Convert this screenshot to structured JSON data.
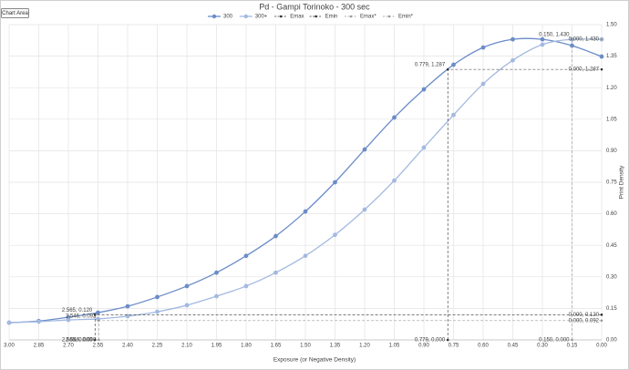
{
  "tooltip": "Chart Area",
  "chart_data": {
    "type": "line",
    "title": "Pd - Gampi Torinoko - 300 sec",
    "x_label": "Exposure (or Negative Density)",
    "y_label": "Print Density",
    "xlim": [
      3.0,
      0.0
    ],
    "ylim": [
      0.0,
      1.5
    ],
    "xticks": [
      {
        "value": 3.0,
        "label": "3.00"
      },
      {
        "value": 2.85,
        "label": "2.85"
      },
      {
        "value": 2.7,
        "label": "2.70"
      },
      {
        "value": 2.55,
        "label": "2.55"
      },
      {
        "value": 2.4,
        "label": "2.40"
      },
      {
        "value": 2.25,
        "label": "2.25"
      },
      {
        "value": 2.1,
        "label": "2.10"
      },
      {
        "value": 1.95,
        "label": "1.95"
      },
      {
        "value": 1.8,
        "label": "1.80"
      },
      {
        "value": 1.65,
        "label": "1.65"
      },
      {
        "value": 1.5,
        "label": "1.50"
      },
      {
        "value": 1.35,
        "label": "1.35"
      },
      {
        "value": 1.2,
        "label": "1.20"
      },
      {
        "value": 1.05,
        "label": "1.05"
      },
      {
        "value": 0.9,
        "label": "0.90"
      },
      {
        "value": 0.75,
        "label": "0.75"
      },
      {
        "value": 0.6,
        "label": "0.60"
      },
      {
        "value": 0.45,
        "label": "0.45"
      },
      {
        "value": 0.3,
        "label": "0.30"
      },
      {
        "value": 0.15,
        "label": "0.15"
      },
      {
        "value": 0.0,
        "label": "0.00"
      }
    ],
    "yticks": [
      {
        "value": 0.0,
        "label": "0.00"
      },
      {
        "value": 0.15,
        "label": "0.15"
      },
      {
        "value": 0.3,
        "label": "0.30"
      },
      {
        "value": 0.45,
        "label": "0.45"
      },
      {
        "value": 0.6,
        "label": "0.60"
      },
      {
        "value": 0.75,
        "label": "0.75"
      },
      {
        "value": 0.9,
        "label": "0.90"
      },
      {
        "value": 1.05,
        "label": "1.05"
      },
      {
        "value": 1.2,
        "label": "1.20"
      },
      {
        "value": 1.35,
        "label": "1.35"
      },
      {
        "value": 1.5,
        "label": "1.50"
      }
    ],
    "grid": true,
    "legend": "top",
    "series": [
      {
        "name": "300",
        "color": "#6b8cc8",
        "dashed": false,
        "smooth": true,
        "x": [
          3.0,
          2.85,
          2.7,
          2.55,
          2.4,
          2.25,
          2.1,
          1.95,
          1.8,
          1.65,
          1.5,
          1.35,
          1.2,
          1.05,
          0.9,
          0.75,
          0.6,
          0.45,
          0.3,
          0.15,
          0.0
        ],
        "values": [
          0.082,
          0.09,
          0.108,
          0.13,
          0.16,
          0.204,
          0.256,
          0.32,
          0.4,
          0.494,
          0.611,
          0.75,
          0.906,
          1.058,
          1.192,
          1.309,
          1.391,
          1.43,
          1.43,
          1.4,
          1.348
        ]
      },
      {
        "name": "300+",
        "color": "#a3b9e0",
        "dashed": false,
        "smooth": true,
        "x": [
          3.0,
          2.85,
          2.7,
          2.55,
          2.4,
          2.25,
          2.1,
          1.95,
          1.8,
          1.65,
          1.5,
          1.35,
          1.2,
          1.05,
          0.9,
          0.75,
          0.6,
          0.45,
          0.3,
          0.15,
          0.0
        ],
        "values": [
          0.082,
          0.087,
          0.095,
          0.1,
          0.113,
          0.134,
          0.165,
          0.208,
          0.256,
          0.32,
          0.4,
          0.5,
          0.62,
          0.758,
          0.915,
          1.07,
          1.218,
          1.33,
          1.405,
          1.43,
          1.43
        ]
      },
      {
        "name": "Emax",
        "color": "#303030",
        "dashed": true,
        "smooth": false,
        "x": [
          0.779,
          0.779,
          0.0
        ],
        "values": [
          0.0,
          1.287,
          1.287
        ],
        "value_labels": [
          "0.779, 0.000",
          "0.779, 1.287",
          "0.000, 1.287"
        ]
      },
      {
        "name": "Emin",
        "color": "#303030",
        "dashed": true,
        "smooth": false,
        "x": [
          2.565,
          2.565,
          0.0
        ],
        "values": [
          0.0,
          0.12,
          0.12
        ],
        "value_labels": [
          "2.565, 0.000",
          "2.565, 0.120",
          "0.000, 0.120"
        ]
      },
      {
        "name": "Emax*",
        "color": "#9a9a9a",
        "dashed": true,
        "smooth": false,
        "x": [
          0.15,
          0.15,
          0.0
        ],
        "values": [
          0.0,
          1.43,
          1.43
        ],
        "value_labels": [
          "0.150, 0.000",
          "0.150, 1.430",
          "0.000, 1.430"
        ]
      },
      {
        "name": "Emin*",
        "color": "#9a9a9a",
        "dashed": true,
        "smooth": false,
        "x": [
          2.546,
          2.546,
          0.0
        ],
        "values": [
          0.0,
          0.092,
          0.092
        ],
        "value_labels": [
          "2.546, 0.000",
          "2.546, 0.092",
          "0.000, 0.092"
        ]
      }
    ]
  }
}
